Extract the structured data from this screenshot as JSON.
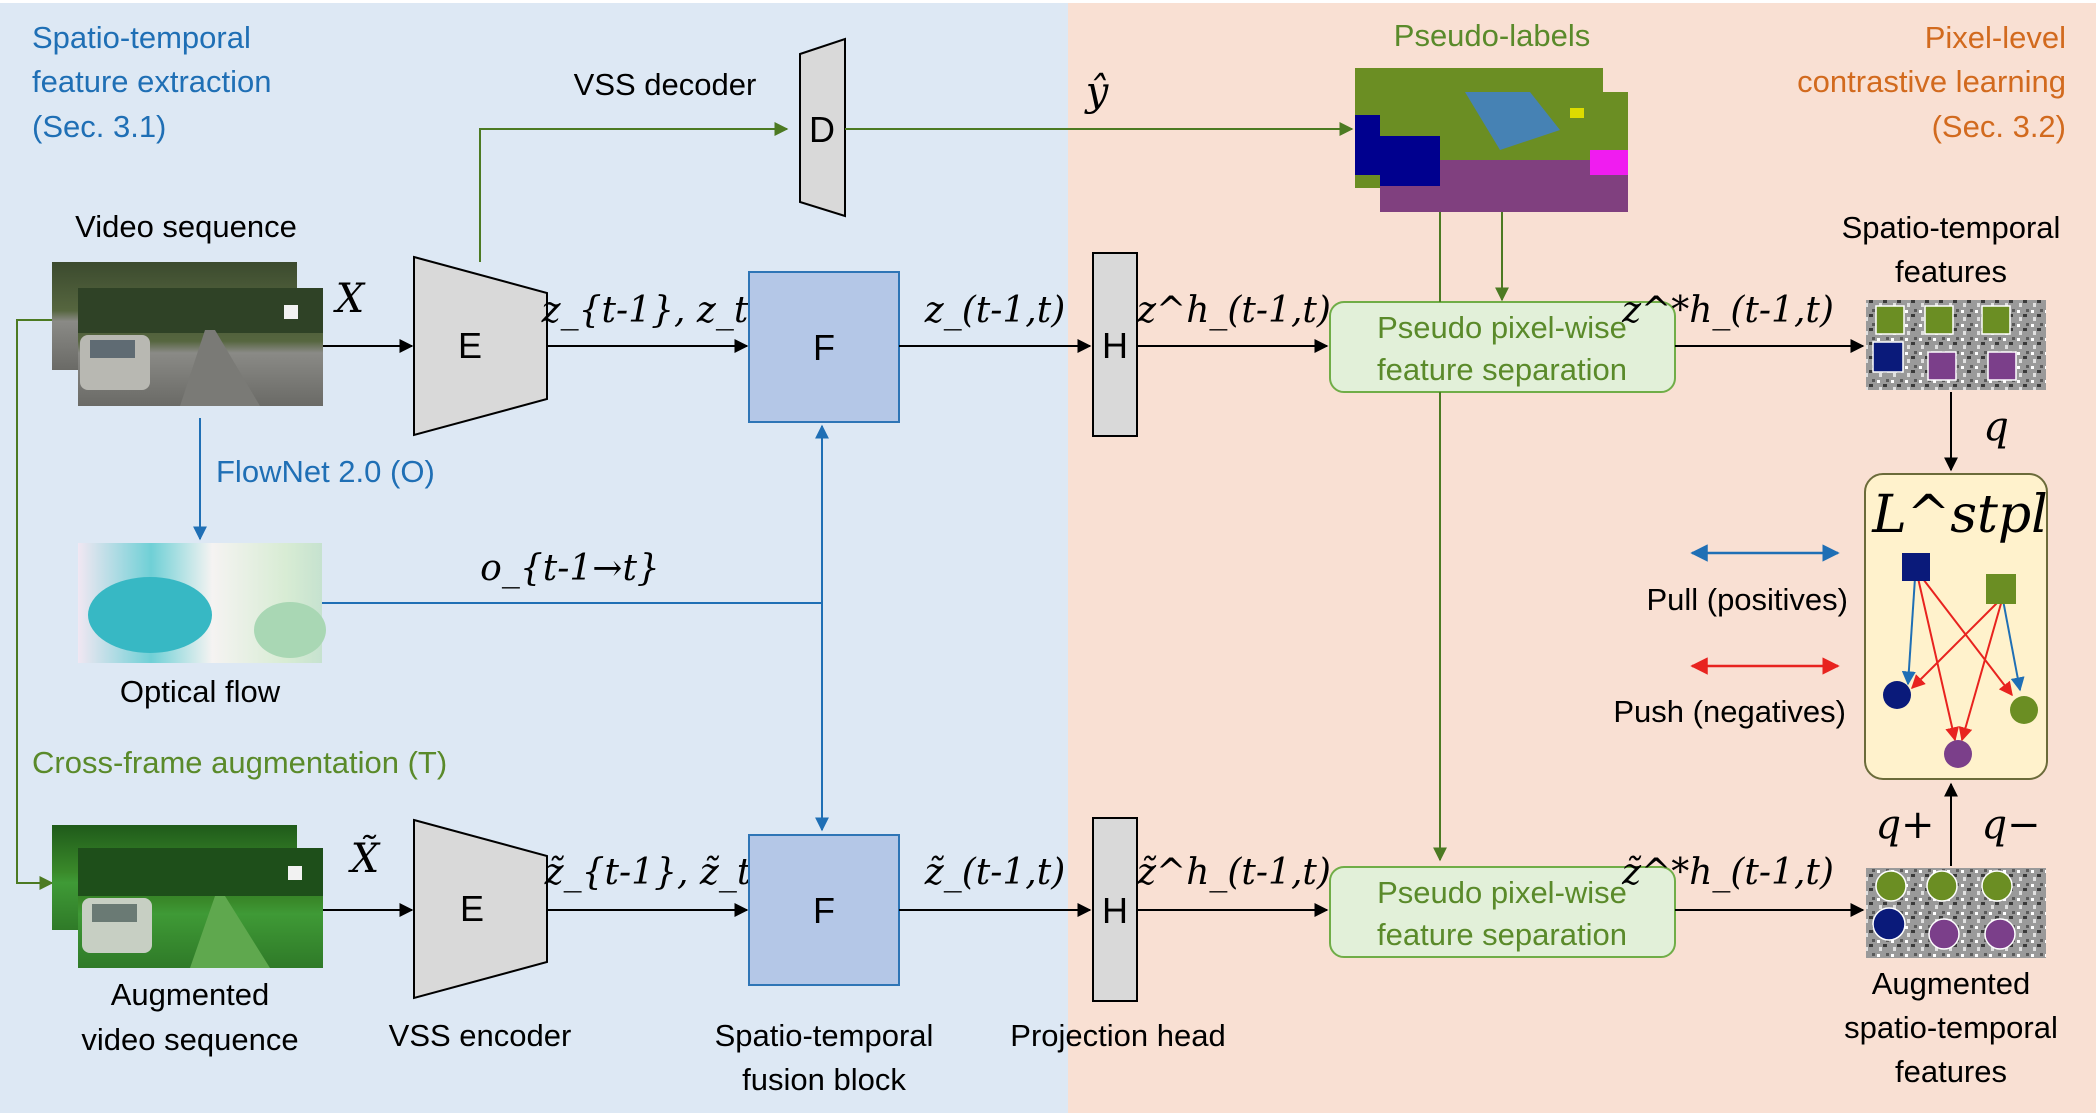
{
  "regions": {
    "extraction_title": [
      "Spatio-temporal",
      "feature extraction",
      "(Sec. 3.1)"
    ],
    "contrastive_title": [
      "Pixel-level",
      "contrastive learning",
      "(Sec. 3.2)"
    ]
  },
  "labels": {
    "video_sequence": "Video sequence",
    "flownet": "FlowNet 2.0 (O)",
    "optical_flow": "Optical flow",
    "cross_frame": "Cross-frame augmentation (T)",
    "augmented_video": [
      "Augmented",
      "video sequence"
    ],
    "vss_decoder": "VSS decoder",
    "vss_encoder": "VSS encoder",
    "fusion_block": [
      "Spatio-temporal",
      "fusion block"
    ],
    "projection_head": "Projection head",
    "pseudo_labels": "Pseudo-labels",
    "st_features": [
      "Spatio-temporal",
      "features"
    ],
    "aug_features": [
      "Augmented",
      "spatio-temporal",
      "features"
    ],
    "pull": "Pull (positives)",
    "push": "Push (negatives)"
  },
  "blocks": {
    "encoder": "E",
    "encoder_aug": "E",
    "decoder": "D",
    "fusion": "F",
    "fusion_aug": "F",
    "head": "H",
    "head_aug": "H",
    "separation_top": [
      "Pseudo pixel-wise",
      "feature separation"
    ],
    "separation_bottom": [
      "Pseudo pixel-wise",
      "feature separation"
    ]
  },
  "math": {
    "X": "X",
    "X_tilde": "X̃",
    "y_hat": "ŷ",
    "z_pair": "z_{t-1}, z_t",
    "z_pair_tilde": "z̃_{t-1}, z̃_t",
    "z_fused": "z_(t-1,t)",
    "z_fused_tilde": "z̃_(t-1,t)",
    "zh": "z^h_(t-1,t)",
    "zh_tilde": "z̃^h_(t-1,t)",
    "zsh": "z^*h_(t-1,t)",
    "zsh_tilde": "z̃^*h_(t-1,t)",
    "flow": "o_{t-1→t}",
    "q": "q",
    "q_plus": "q+",
    "q_minus": "q−",
    "loss": "L^stpl"
  },
  "colors": {
    "left_bg": "#dde8f4",
    "right_bg": "#f9e0d3",
    "blue_arrow": "#1f6fb5",
    "green_arrow": "#4c7a22",
    "red_arrow": "#e8231f",
    "fusion_fill": "#b4c7e7",
    "separation_fill": "#e2f0d9",
    "loss_fill": "#fff2cc",
    "navy": "#0a1a7a",
    "olive": "#6b8e23",
    "purple": "#7b3f8a"
  }
}
